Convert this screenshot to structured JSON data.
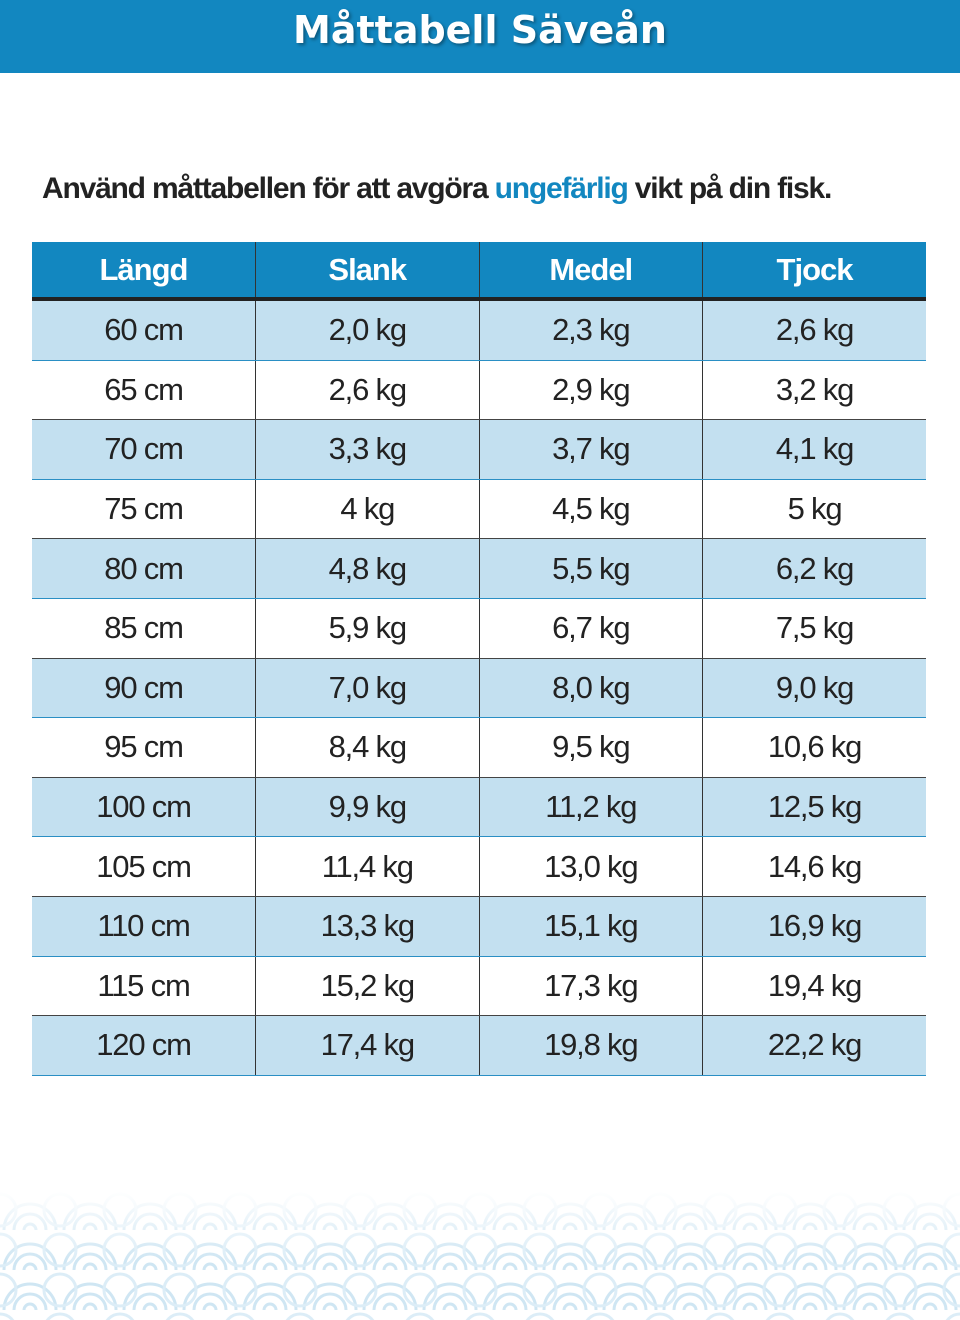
{
  "header": {
    "title": "Måttabell Säveån"
  },
  "intro": {
    "before": "Använd måttabellen för att avgöra ",
    "highlight": "ungefärlig",
    "after": " vikt på din fisk."
  },
  "table": {
    "columns": [
      "Längd",
      "Slank",
      "Medel",
      "Tjock"
    ],
    "rows": [
      [
        "60 cm",
        "2,0 kg",
        "2,3 kg",
        "2,6 kg"
      ],
      [
        "65 cm",
        "2,6 kg",
        "2,9 kg",
        "3,2 kg"
      ],
      [
        "70 cm",
        "3,3 kg",
        "3,7 kg",
        "4,1 kg"
      ],
      [
        "75 cm",
        "4 kg",
        "4,5 kg",
        "5 kg"
      ],
      [
        "80 cm",
        "4,8 kg",
        "5,5 kg",
        "6,2 kg"
      ],
      [
        "85 cm",
        "5,9 kg",
        "6,7 kg",
        "7,5 kg"
      ],
      [
        "90 cm",
        "7,0 kg",
        "8,0 kg",
        "9,0 kg"
      ],
      [
        "95 cm",
        "8,4 kg",
        "9,5 kg",
        "10,6 kg"
      ],
      [
        "100 cm",
        "9,9 kg",
        "11,2 kg",
        "12,5 kg"
      ],
      [
        "105 cm",
        "11,4 kg",
        "13,0 kg",
        "14,6 kg"
      ],
      [
        "110 cm",
        "13,3 kg",
        "15,1 kg",
        "16,9 kg"
      ],
      [
        "115 cm",
        "15,2 kg",
        "17,3 kg",
        "19,4 kg"
      ],
      [
        "120 cm",
        "17,4 kg",
        "19,8 kg",
        "22,2 kg"
      ]
    ]
  }
}
